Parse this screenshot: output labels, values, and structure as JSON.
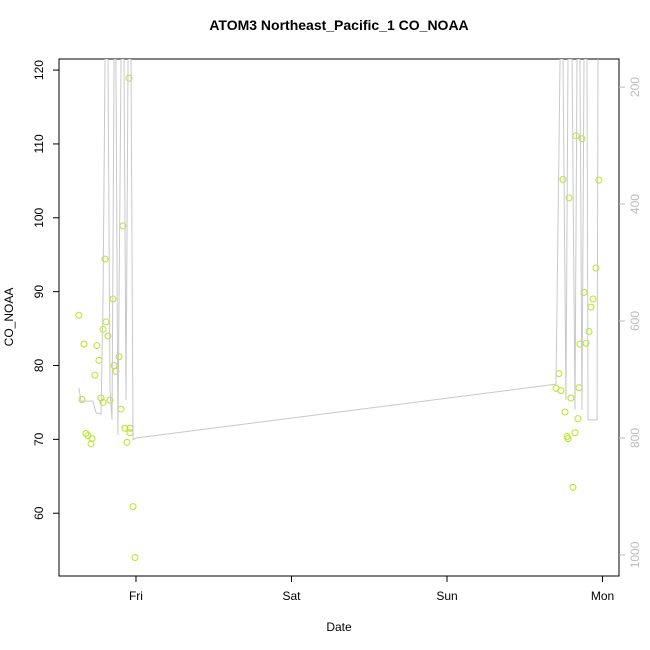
{
  "chart_data": {
    "type": "scatter",
    "title": "ATOM3 Northeast_Pacific_1 CO_NOAA",
    "x_label": "Date",
    "y_label": "CO_NOAA",
    "xlim": [
      -0.495,
      3.106
    ],
    "xticks": [
      {
        "value": 0,
        "label": "Fri"
      },
      {
        "value": 1,
        "label": "Sat"
      },
      {
        "value": 2,
        "label": "Sun"
      },
      {
        "value": 3,
        "label": "Mon"
      }
    ],
    "ylim": [
      51.5,
      121.5
    ],
    "yticks": [
      60,
      70,
      80,
      90,
      100,
      110,
      120
    ],
    "y2lim": [
      1036,
      152
    ],
    "y2ticks": [
      200,
      400,
      600,
      800,
      1000
    ],
    "series": [
      {
        "color": "#b5e61d",
        "x": [
          -0.367,
          -0.347,
          -0.334,
          -0.322,
          -0.309,
          -0.289,
          -0.283,
          -0.264,
          -0.251,
          -0.238,
          -0.225,
          -0.212,
          -0.212,
          -0.199,
          -0.193,
          -0.18,
          -0.167,
          -0.148,
          -0.141,
          -0.129,
          -0.109,
          -0.096,
          -0.084,
          -0.071,
          -0.058,
          -0.045,
          -0.039,
          -0.039,
          -0.019,
          -0.006,
          2.701,
          2.72,
          2.733,
          2.746,
          2.759,
          2.772,
          2.778,
          2.785,
          2.797,
          2.81,
          2.823,
          2.83,
          2.842,
          2.849,
          2.855,
          2.868,
          2.881,
          2.894,
          2.913,
          2.926,
          2.939,
          2.958,
          2.977
        ],
        "values": [
          86.8,
          75.4,
          82.9,
          70.8,
          70.5,
          69.4,
          70.1,
          78.7,
          82.7,
          80.7,
          75.6,
          84.9,
          75.0,
          94.4,
          85.9,
          84.0,
          75.3,
          89.0,
          80.0,
          79.2,
          81.2,
          74.1,
          98.9,
          71.5,
          69.6,
          118.9,
          70.9,
          71.5,
          60.9,
          54.0,
          76.9,
          78.9,
          76.6,
          105.2,
          73.7,
          70.4,
          70.1,
          102.7,
          75.6,
          63.5,
          70.9,
          111.1,
          72.8,
          77.0,
          82.9,
          110.7,
          89.9,
          83.0,
          84.6,
          87.9,
          89.0,
          93.2,
          105.1
        ]
      },
      {
        "type": "line",
        "axis": "y2",
        "color": "#c8c8c8",
        "x": [
          -0.367,
          -0.354,
          -0.277,
          -0.257,
          -0.225,
          -0.212,
          -0.199,
          -0.18,
          -0.167,
          -0.154,
          -0.141,
          -0.129,
          -0.116,
          -0.096,
          -0.077,
          -0.064,
          -0.051,
          -0.032,
          -0.019,
          0,
          2.701,
          2.727,
          2.746,
          2.765,
          2.778,
          2.804,
          2.823,
          2.836,
          2.855,
          2.868,
          2.881,
          2.9,
          2.907,
          2.965,
          2.971
        ],
        "values": [
          714,
          737,
          737,
          757,
          759,
          564,
          152,
          152,
          718,
          769,
          152,
          152,
          795,
          152,
          152,
          735,
          152,
          152,
          803,
          800,
          708,
          152,
          152,
          735,
          152,
          152,
          752,
          152,
          152,
          752,
          152,
          152,
          769,
          769,
          152
        ]
      }
    ]
  }
}
